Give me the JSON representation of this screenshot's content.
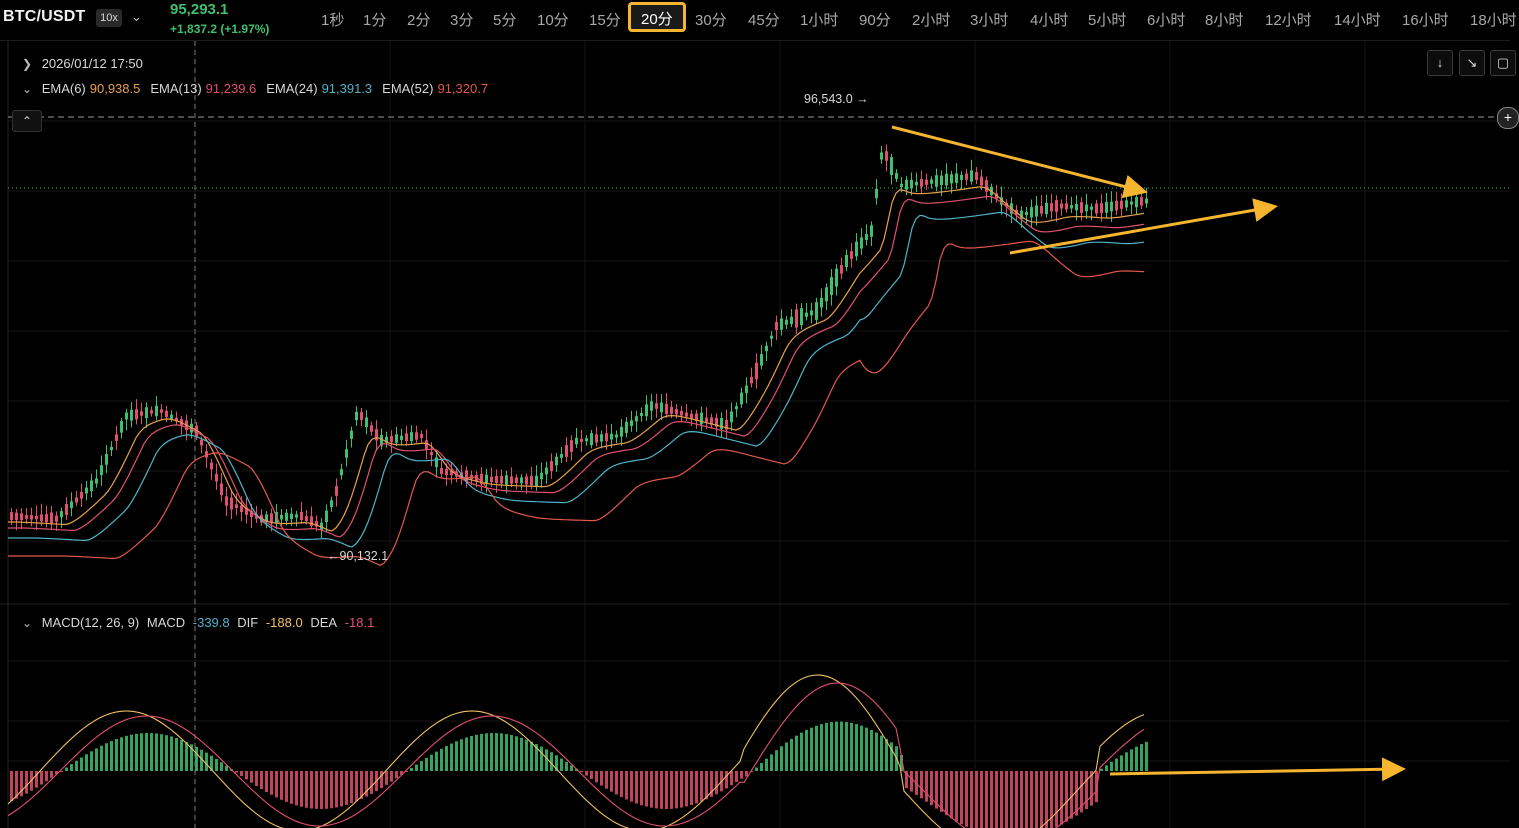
{
  "header": {
    "symbol": "BTC/USDT",
    "leverage": "10x",
    "price": "95,293.1",
    "change": "+1,837.2 (+1.97%)"
  },
  "intervals": [
    "1秒",
    "1分",
    "2分",
    "3分",
    "5分",
    "10分",
    "15分",
    "20分",
    "30分",
    "45分",
    "1小时",
    "90分",
    "2小时",
    "3小时",
    "4小时",
    "5小时",
    "6小时",
    "8小时",
    "12小时",
    "14小时",
    "16小时",
    "18小时"
  ],
  "active_interval": "20分",
  "legend": {
    "date": "2026/01/12 17:50",
    "ema": [
      {
        "label": "EMA(6)",
        "value": "90,938.5",
        "color": "#e8a04a"
      },
      {
        "label": "EMA(13)",
        "value": "91,239.6",
        "color": "#e0506e"
      },
      {
        "label": "EMA(24)",
        "value": "91,391.3",
        "color": "#4fb3c9"
      },
      {
        "label": "EMA(52)",
        "value": "91,320.7",
        "color": "#e2584a"
      }
    ],
    "macd": {
      "label": "MACD(12, 26, 9)",
      "macd_label": "MACD",
      "macd_value": "-339.8",
      "dif_label": "DIF",
      "dif_value": "-188.0",
      "dea_label": "DEA",
      "dea_value": "-18.1"
    }
  },
  "annotations": {
    "high_label": "96,543.0",
    "low_label": "90,132.1"
  },
  "controls": {
    "download_icon": "arrow-down-icon",
    "shrink_icon": "shrink-icon",
    "fullscreen_icon": "fullscreen-icon"
  },
  "colors": {
    "up": "#3fbf6f",
    "down": "#e0506e",
    "accent": "#f5b52e",
    "ema6": "#e8a04a",
    "ema13": "#e0506e",
    "ema24": "#4fb3c9",
    "ema52": "#e2584a",
    "dif": "#f0c060",
    "dea": "#e0506e"
  }
}
